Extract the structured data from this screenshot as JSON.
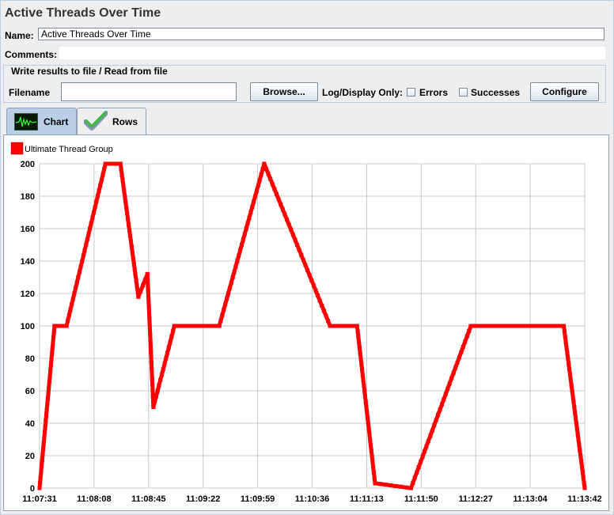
{
  "header": {
    "title": "Active Threads Over Time"
  },
  "form": {
    "name_label": "Name:",
    "name_value": "Active Threads Over Time",
    "comments_label": "Comments:",
    "comments_value": ""
  },
  "file_section": {
    "legend": "Write results to file / Read from file",
    "filename_label": "Filename",
    "filename_value": "",
    "browse_label": "Browse...",
    "log_display_label": "Log/Display Only:",
    "errors_label": "Errors",
    "errors_checked": false,
    "successes_label": "Successes",
    "successes_checked": false,
    "configure_label": "Configure"
  },
  "tabs": [
    {
      "label": "Chart",
      "icon": "chart-icon",
      "active": true
    },
    {
      "label": "Rows",
      "icon": "checkmark-icon",
      "active": false
    }
  ],
  "colors": {
    "series": "#ff0000",
    "grid": "#c8c8c8",
    "tab_active": "#b8cfe5"
  },
  "chart_data": {
    "type": "line",
    "legend": "Ultimate Thread Group",
    "legend_position": "top-left",
    "ylim": [
      0,
      200
    ],
    "y_ticks": [
      0,
      20,
      40,
      60,
      80,
      100,
      120,
      140,
      160,
      180,
      200
    ],
    "x_ticks": [
      "11:07:31",
      "11:08:08",
      "11:08:45",
      "11:09:22",
      "11:09:59",
      "11:10:36",
      "11:11:13",
      "11:11:50",
      "11:12:27",
      "11:13:04",
      "11:13:42"
    ],
    "grid": true,
    "series": [
      {
        "name": "Ultimate Thread Group",
        "color": "#ff0000",
        "points": [
          [
            0,
            0
          ],
          [
            5,
            100
          ],
          [
            9,
            100
          ],
          [
            22,
            200
          ],
          [
            27,
            200
          ],
          [
            33,
            118
          ],
          [
            36,
            132
          ],
          [
            38,
            50
          ],
          [
            45,
            100
          ],
          [
            60,
            100
          ],
          [
            75,
            200
          ],
          [
            97,
            100
          ],
          [
            106,
            100
          ],
          [
            112,
            3
          ],
          [
            124,
            0
          ],
          [
            144,
            100
          ],
          [
            175,
            100
          ],
          [
            182,
            0
          ]
        ]
      }
    ]
  }
}
